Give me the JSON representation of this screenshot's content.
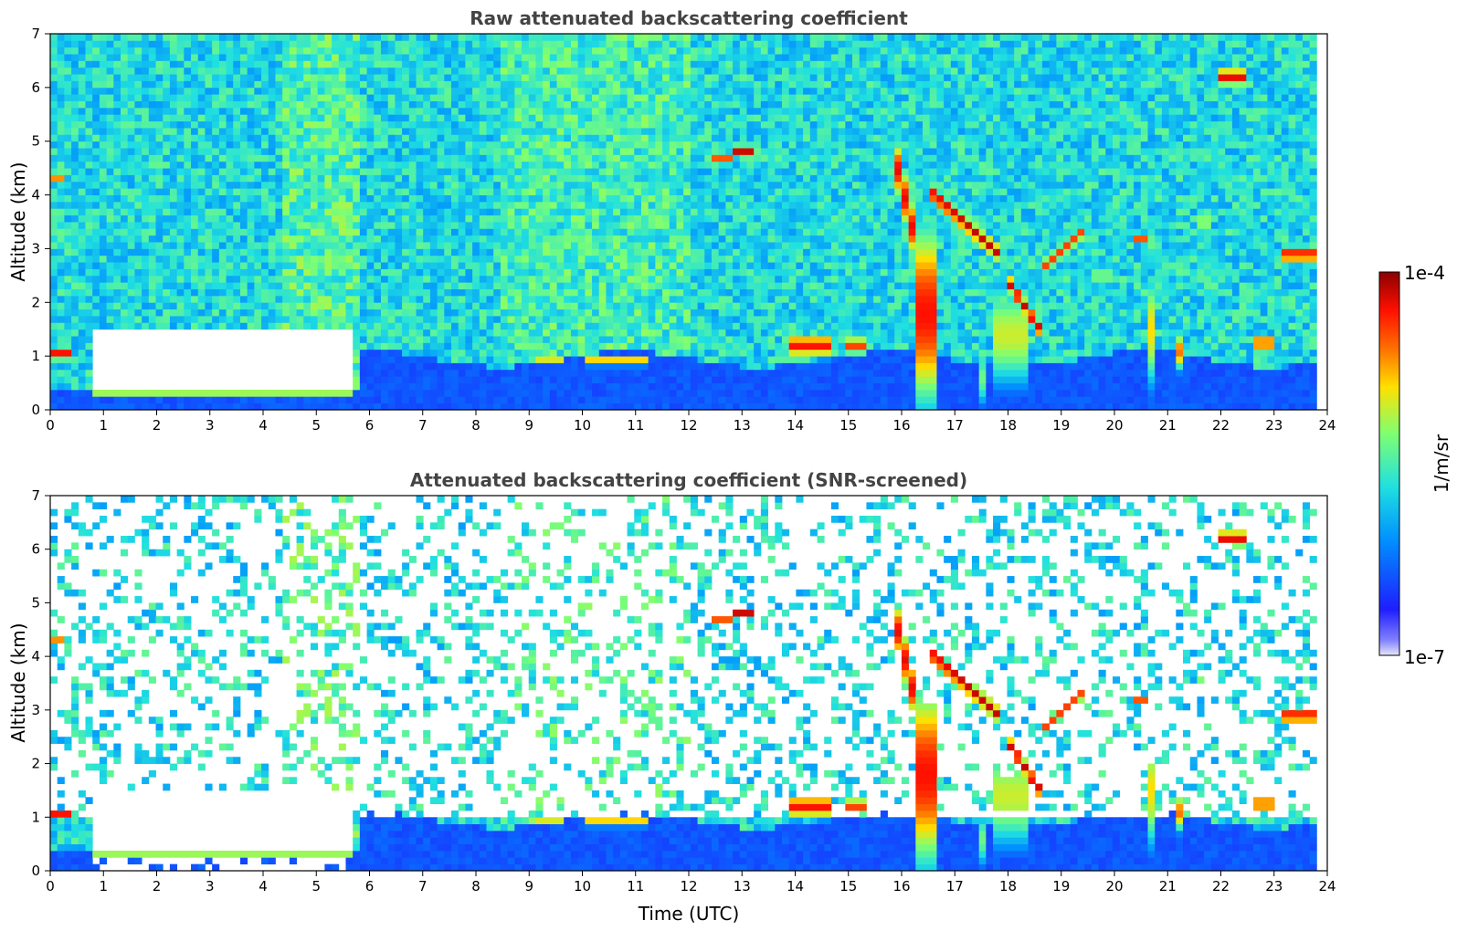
{
  "chart_data": [
    {
      "type": "heatmap",
      "title": "Raw attenuated backscattering coefficient",
      "xlabel": "",
      "ylabel": "Altitude (km)",
      "xlim": [
        0,
        24
      ],
      "ylim": [
        0,
        7
      ],
      "xticks": [
        "0",
        "1",
        "2",
        "3",
        "4",
        "5",
        "6",
        "7",
        "8",
        "9",
        "10",
        "11",
        "12",
        "13",
        "14",
        "15",
        "16",
        "17",
        "18",
        "19",
        "20",
        "21",
        "22",
        "23",
        "24"
      ],
      "yticks": [
        "0",
        "1",
        "2",
        "3",
        "4",
        "5",
        "6",
        "7"
      ],
      "grid": false,
      "features": [
        {
          "t0": 0.6,
          "t1": 5.7,
          "alt_km": 0.25,
          "level": 1.0
        },
        {
          "t0": 0.0,
          "t1": 0.4,
          "alt_km": 1.05,
          "level": 0.9
        },
        {
          "t0": 9.1,
          "t1": 9.6,
          "alt_km": 0.95,
          "level": 0.85
        },
        {
          "t0": 10.0,
          "t1": 11.2,
          "alt_km": 0.88,
          "level": 0.85
        },
        {
          "t0": 12.4,
          "t1": 13.2,
          "alt_km": 4.7,
          "level": 0.95
        },
        {
          "t0": 14.0,
          "t1": 14.6,
          "alt_km": 1.2,
          "level": 0.9
        },
        {
          "t0": 16.3,
          "t1": 16.6,
          "alt_km": 1.5,
          "level": 0.95
        },
        {
          "t0": 17.8,
          "t1": 18.4,
          "alt_km": 1.5,
          "level": 0.75
        },
        {
          "t0": 22.6,
          "t1": 23.0,
          "alt_km": 1.25,
          "level": 0.9
        },
        {
          "t0": 23.3,
          "t1": 23.8,
          "alt_km": 2.8,
          "level": 0.9
        }
      ]
    },
    {
      "type": "heatmap",
      "title": "Attenuated backscattering coefficient (SNR-screened)",
      "xlabel": "Time (UTC)",
      "ylabel": "Altitude (km)",
      "xlim": [
        0,
        24
      ],
      "ylim": [
        0,
        7
      ],
      "xticks": [
        "0",
        "1",
        "2",
        "3",
        "4",
        "5",
        "6",
        "7",
        "8",
        "9",
        "10",
        "11",
        "12",
        "13",
        "14",
        "15",
        "16",
        "17",
        "18",
        "19",
        "20",
        "21",
        "22",
        "23",
        "24"
      ],
      "yticks": [
        "0",
        "1",
        "2",
        "3",
        "4",
        "5",
        "6",
        "7"
      ],
      "grid": false
    }
  ],
  "colorbar": {
    "label": "1/m/sr",
    "max_label": "1e-4",
    "min_label": "1e-7",
    "colormap": [
      "#e6e6f8",
      "#1e1eff",
      "#00a0ff",
      "#20e0e0",
      "#80ff70",
      "#ffe000",
      "#ff7000",
      "#ff1000",
      "#8b0000"
    ]
  }
}
